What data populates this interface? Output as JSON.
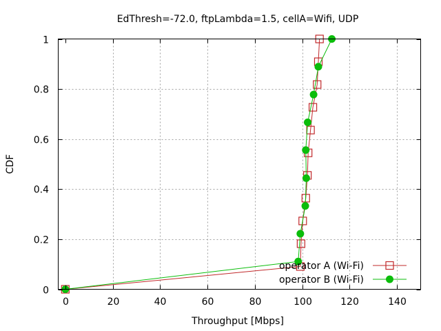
{
  "chart_data": {
    "type": "line",
    "title": "EdThresh=-72.0, ftpLambda=1.5, cellA=Wifi, UDP",
    "xlabel": "Throughput [Mbps]",
    "ylabel": "CDF",
    "xlim": [
      -3,
      150
    ],
    "ylim": [
      0,
      1
    ],
    "xticks": [
      0,
      20,
      40,
      60,
      80,
      100,
      120,
      140
    ],
    "yticks": [
      0,
      0.2,
      0.4,
      0.6,
      0.8,
      1
    ],
    "grid": true,
    "legend_position": "bottom-right",
    "series": [
      {
        "name": "operator A (Wi-Fi)",
        "color": "#c0282a",
        "marker": "open-square",
        "x": [
          0,
          99.2,
          99.5,
          100.2,
          101.5,
          102.2,
          102.5,
          103.5,
          104.5,
          106.3,
          106.8,
          107.3
        ],
        "y": [
          0,
          0.091,
          0.182,
          0.273,
          0.364,
          0.455,
          0.545,
          0.636,
          0.727,
          0.818,
          0.909,
          1.0
        ]
      },
      {
        "name": "operator B (Wi-Fi)",
        "color": "#0bbd0b",
        "marker": "filled-circle",
        "x": [
          0,
          98.3,
          99.2,
          101.3,
          101.7,
          101.5,
          102.3,
          104.8,
          106.8,
          112.5
        ],
        "y": [
          0,
          0.111,
          0.222,
          0.333,
          0.444,
          0.556,
          0.667,
          0.778,
          0.889,
          1.0
        ]
      }
    ]
  }
}
